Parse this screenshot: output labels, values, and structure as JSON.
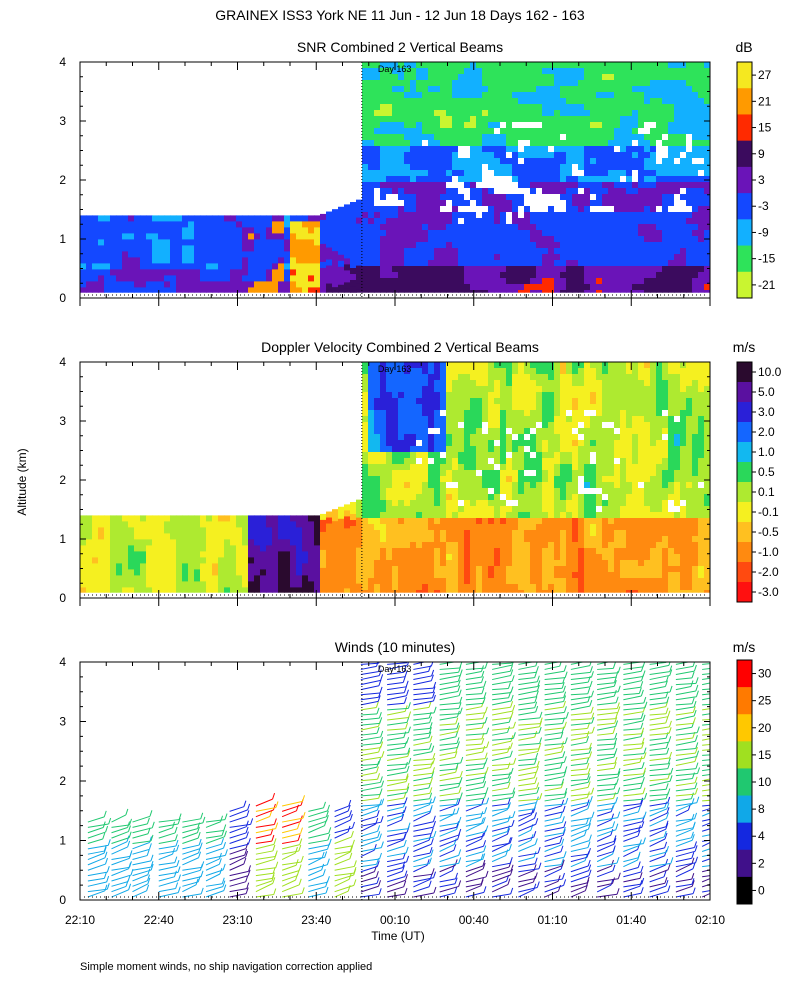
{
  "figure": {
    "title": "GRAINEX ISS3 York NE  11 Jun - 12 Jun 18 Days 162 - 163",
    "ylabel": "Altitude (km)",
    "xlabel": "Time (UT)",
    "footnote": "Simple moment winds, no ship navigation correction applied",
    "day_marker": "Day 163",
    "x_tick_labels": [
      "22:10",
      "22:40",
      "23:10",
      "23:40",
      "00:10",
      "00:40",
      "01:10",
      "01:40",
      "02:10"
    ],
    "y_tick_labels": [
      "0",
      "1",
      "2",
      "3",
      "4"
    ]
  },
  "chart_data": [
    {
      "type": "heatmap",
      "title": "SNR Combined 2 Vertical Beams",
      "x_range": [
        "22:10",
        "02:10"
      ],
      "ylim": [
        0,
        4
      ],
      "colorbar": {
        "unit": "dB",
        "labels": [
          "27",
          "21",
          "15",
          "9",
          "3",
          "-3",
          "-9",
          "-15",
          "-21"
        ],
        "colors": [
          "#f5e820",
          "#ff9a00",
          "#ff2a00",
          "#3b0b5e",
          "#6a14b8",
          "#1448ff",
          "#12b0ff",
          "#2ee35a",
          "#c9f530"
        ]
      },
      "segments": [
        {
          "from": "22:10",
          "to": "23:40",
          "top_km": 1.4
        },
        {
          "from": "23:40",
          "to": "23:57",
          "top_km": 1.4
        },
        {
          "from": "23:57",
          "to": "02:10",
          "top_km": 4.0
        }
      ]
    },
    {
      "type": "heatmap",
      "title": "Doppler Velocity Combined 2 Vertical Beams",
      "x_range": [
        "22:10",
        "02:10"
      ],
      "ylim": [
        0,
        4
      ],
      "colorbar": {
        "unit": "m/s",
        "labels": [
          "10.0",
          "5.0",
          "3.0",
          "2.0",
          "1.0",
          "0.5",
          "0.1",
          "-0.1",
          "-0.5",
          "-1.0",
          "-2.0",
          "-3.0"
        ],
        "colors": [
          "#2a0a2e",
          "#5a10a0",
          "#2a20d8",
          "#1466ff",
          "#12b8f0",
          "#2ad85a",
          "#aeea30",
          "#f5f020",
          "#ffc020",
          "#ff8a10",
          "#ff4a10",
          "#ff1010"
        ]
      },
      "segments": [
        {
          "from": "22:10",
          "to": "23:40",
          "top_km": 1.4
        },
        {
          "from": "23:40",
          "to": "23:57",
          "top_km": 1.4
        },
        {
          "from": "23:57",
          "to": "02:10",
          "top_km": 4.0
        }
      ]
    },
    {
      "type": "scatter",
      "title": "Winds (10 minutes)",
      "x_range": [
        "22:10",
        "02:10"
      ],
      "ylim": [
        0,
        4
      ],
      "colorbar": {
        "unit": "m/s",
        "labels": [
          "30",
          "25",
          "20",
          "15",
          "10",
          "8",
          "4",
          "2",
          "0"
        ],
        "colors": [
          "#ff0000",
          "#ff7a00",
          "#ffc800",
          "#a0e020",
          "#20c870",
          "#10a8e8",
          "#1428e0",
          "#40108a",
          "#000000"
        ]
      },
      "profiles": [
        {
          "time": "22:13",
          "top_km": 1.4
        },
        {
          "time": "22:22",
          "top_km": 1.4
        },
        {
          "time": "22:30",
          "top_km": 1.4
        },
        {
          "time": "22:40",
          "top_km": 1.4
        },
        {
          "time": "22:49",
          "top_km": 1.4
        },
        {
          "time": "22:58",
          "top_km": 1.4
        },
        {
          "time": "23:07",
          "top_km": 1.5
        },
        {
          "time": "23:17",
          "top_km": 1.6
        },
        {
          "time": "23:27",
          "top_km": 1.6
        },
        {
          "time": "23:37",
          "top_km": 1.5
        },
        {
          "time": "23:47",
          "top_km": 1.5
        },
        {
          "time": "23:57",
          "top_km": 4.0
        },
        {
          "time": "00:07",
          "top_km": 4.0
        },
        {
          "time": "00:17",
          "top_km": 4.0
        },
        {
          "time": "00:27",
          "top_km": 4.0
        },
        {
          "time": "00:37",
          "top_km": 4.0
        },
        {
          "time": "00:47",
          "top_km": 4.0
        },
        {
          "time": "00:57",
          "top_km": 4.0
        },
        {
          "time": "01:07",
          "top_km": 4.0
        },
        {
          "time": "01:17",
          "top_km": 4.0
        },
        {
          "time": "01:27",
          "top_km": 4.0
        },
        {
          "time": "01:37",
          "top_km": 4.0
        },
        {
          "time": "01:47",
          "top_km": 4.0
        },
        {
          "time": "01:57",
          "top_km": 4.0
        },
        {
          "time": "02:07",
          "top_km": 4.0
        }
      ]
    }
  ]
}
